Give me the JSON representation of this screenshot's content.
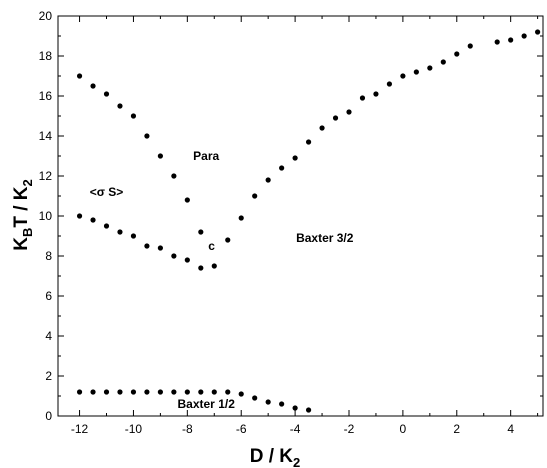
{
  "chart_data": {
    "type": "scatter",
    "title": "",
    "xlabel": {
      "main": "D / K",
      "sub": "2"
    },
    "ylabel": {
      "pre": "K",
      "sub1": "B",
      "mid": "T / K",
      "sub2": "2"
    },
    "xlim": [
      -12.8,
      5.2
    ],
    "ylim": [
      0,
      20
    ],
    "x_ticks": [
      -12,
      -10,
      -8,
      -6,
      -4,
      -2,
      0,
      2,
      4
    ],
    "y_ticks": [
      0,
      2,
      4,
      6,
      8,
      10,
      12,
      14,
      16,
      18,
      20
    ],
    "grid": false,
    "marker_color": "#000000",
    "annotations": [
      {
        "text": "Para",
        "x": -7.3,
        "y": 12.8
      },
      {
        "text": "<σ S>",
        "x": -11.0,
        "y": 11.0
      },
      {
        "text": "c",
        "x": -7.1,
        "y": 8.3
      },
      {
        "text": "Baxter 3/2",
        "x": -2.9,
        "y": 8.7
      },
      {
        "text": "Baxter 1/2",
        "x": -7.3,
        "y": 0.4
      }
    ],
    "series": [
      {
        "values": [
          [
            -12.0,
            17.0
          ],
          [
            -11.5,
            16.5
          ],
          [
            -11.0,
            16.1
          ],
          [
            -10.5,
            15.5
          ],
          [
            -10.0,
            15.0
          ],
          [
            -9.5,
            14.0
          ],
          [
            -9.0,
            13.0
          ],
          [
            -8.5,
            12.0
          ],
          [
            -8.0,
            10.8
          ],
          [
            -7.5,
            9.2
          ],
          [
            -7.0,
            7.5
          ],
          [
            -6.5,
            8.8
          ],
          [
            -6.0,
            9.9
          ],
          [
            -5.5,
            11.0
          ],
          [
            -5.0,
            11.8
          ],
          [
            -4.5,
            12.4
          ],
          [
            -4.0,
            12.9
          ],
          [
            -3.5,
            13.7
          ],
          [
            -3.0,
            14.4
          ],
          [
            -2.5,
            14.9
          ],
          [
            -2.0,
            15.2
          ],
          [
            -1.5,
            15.9
          ],
          [
            -1.0,
            16.1
          ],
          [
            -0.5,
            16.6
          ],
          [
            0.0,
            17.0
          ],
          [
            0.5,
            17.2
          ],
          [
            1.0,
            17.4
          ],
          [
            1.5,
            17.7
          ],
          [
            2.0,
            18.1
          ],
          [
            2.5,
            18.5
          ],
          [
            3.5,
            18.7
          ],
          [
            4.0,
            18.8
          ],
          [
            4.5,
            19.0
          ],
          [
            5.0,
            19.2
          ]
        ]
      },
      {
        "values": [
          [
            -12.0,
            10.0
          ],
          [
            -11.5,
            9.8
          ],
          [
            -11.0,
            9.5
          ],
          [
            -10.5,
            9.2
          ],
          [
            -10.0,
            9.0
          ],
          [
            -9.5,
            8.5
          ],
          [
            -9.0,
            8.4
          ],
          [
            -8.5,
            8.0
          ],
          [
            -8.0,
            7.8
          ],
          [
            -7.5,
            7.4
          ]
        ]
      },
      {
        "values": [
          [
            -12.0,
            1.2
          ],
          [
            -11.5,
            1.2
          ],
          [
            -11.0,
            1.2
          ],
          [
            -10.5,
            1.2
          ],
          [
            -10.0,
            1.2
          ],
          [
            -9.5,
            1.2
          ],
          [
            -9.0,
            1.2
          ],
          [
            -8.5,
            1.2
          ],
          [
            -8.0,
            1.2
          ],
          [
            -7.5,
            1.2
          ],
          [
            -7.0,
            1.2
          ],
          [
            -6.5,
            1.2
          ],
          [
            -6.0,
            1.1
          ],
          [
            -5.5,
            0.9
          ],
          [
            -5.0,
            0.7
          ],
          [
            -4.5,
            0.6
          ],
          [
            -4.0,
            0.4
          ],
          [
            -3.5,
            0.3
          ]
        ]
      }
    ]
  }
}
